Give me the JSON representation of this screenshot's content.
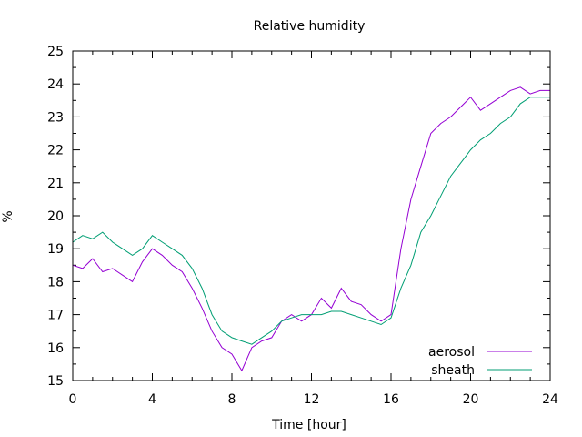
{
  "chart_data": {
    "type": "line",
    "title": "Relative humidity",
    "xlabel": "Time [hour]",
    "ylabel": "%",
    "xlim": [
      0,
      24
    ],
    "ylim": [
      15,
      25
    ],
    "xticks": [
      0,
      4,
      8,
      12,
      16,
      20,
      24
    ],
    "yticks": [
      15,
      16,
      17,
      18,
      19,
      20,
      21,
      22,
      23,
      24,
      25
    ],
    "grid": false,
    "legend_position": "bottom-right",
    "series": [
      {
        "name": "aerosol",
        "color": "#9400d3",
        "x": [
          0,
          0.5,
          1,
          1.5,
          2,
          2.5,
          3,
          3.5,
          4,
          4.5,
          5,
          5.5,
          6,
          6.5,
          7,
          7.5,
          8,
          8.5,
          9,
          9.5,
          10,
          10.5,
          11,
          11.5,
          12,
          12.5,
          13,
          13.5,
          14,
          14.5,
          15,
          15.5,
          16,
          16.5,
          17,
          17.5,
          18,
          18.5,
          19,
          19.5,
          20,
          20.5,
          21,
          21.5,
          22,
          22.5,
          23,
          23.5,
          24
        ],
        "y": [
          18.5,
          18.4,
          18.7,
          18.3,
          18.4,
          18.2,
          18.0,
          18.6,
          19.0,
          18.8,
          18.5,
          18.3,
          17.8,
          17.2,
          16.5,
          16.0,
          15.8,
          15.3,
          16.0,
          16.2,
          16.3,
          16.8,
          17.0,
          16.8,
          17.0,
          17.5,
          17.2,
          17.8,
          17.4,
          17.3,
          17.0,
          16.8,
          17.0,
          19.0,
          20.5,
          21.5,
          22.5,
          22.8,
          23.0,
          23.3,
          23.6,
          23.2,
          23.4,
          23.6,
          23.8,
          23.9,
          23.7,
          23.8,
          23.8
        ]
      },
      {
        "name": "sheath",
        "color": "#009e73",
        "x": [
          0,
          0.5,
          1,
          1.5,
          2,
          2.5,
          3,
          3.5,
          4,
          4.5,
          5,
          5.5,
          6,
          6.5,
          7,
          7.5,
          8,
          8.5,
          9,
          9.5,
          10,
          10.5,
          11,
          11.5,
          12,
          12.5,
          13,
          13.5,
          14,
          14.5,
          15,
          15.5,
          16,
          16.5,
          17,
          17.5,
          18,
          18.5,
          19,
          19.5,
          20,
          20.5,
          21,
          21.5,
          22,
          22.5,
          23,
          23.5,
          24
        ],
        "y": [
          19.2,
          19.4,
          19.3,
          19.5,
          19.2,
          19.0,
          18.8,
          19.0,
          19.4,
          19.2,
          19.0,
          18.8,
          18.4,
          17.8,
          17.0,
          16.5,
          16.3,
          16.2,
          16.1,
          16.3,
          16.5,
          16.8,
          16.9,
          17.0,
          17.0,
          17.0,
          17.1,
          17.1,
          17.0,
          16.9,
          16.8,
          16.7,
          16.9,
          17.8,
          18.5,
          19.5,
          20.0,
          20.6,
          21.2,
          21.6,
          22.0,
          22.3,
          22.5,
          22.8,
          23.0,
          23.4,
          23.6,
          23.6,
          23.6
        ]
      }
    ]
  }
}
